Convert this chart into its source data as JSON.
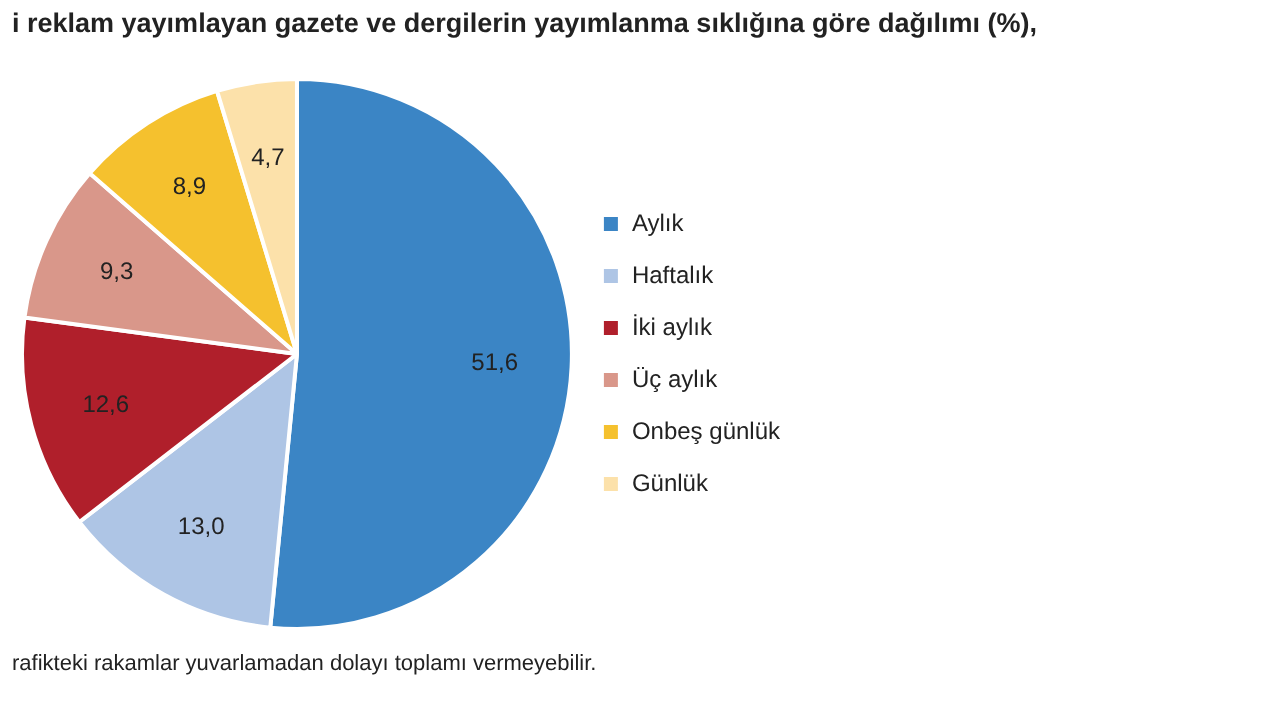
{
  "chart_data": {
    "type": "pie",
    "title": "i reklam yayımlayan gazete ve dergilerin yayımlanma sıklığına göre dağılımı (%),",
    "categories": [
      "Aylık",
      "Haftalık",
      "İki aylık",
      "Üç aylık",
      "Onbeş günlük",
      "Günlük"
    ],
    "values": [
      51.6,
      13.0,
      12.6,
      9.3,
      8.9,
      4.7
    ],
    "value_labels": [
      "51,6",
      "13,0",
      "12,6",
      "9,3",
      "8,9",
      "4,7"
    ],
    "colors": [
      "#3b85c5",
      "#aec5e5",
      "#b01f2b",
      "#d9978a",
      "#f5c12e",
      "#fce1aa"
    ],
    "legend": "right",
    "annotations": [
      "rafikteki rakamlar yuvarlamadan dolayı toplamı vermeyebilir."
    ]
  }
}
